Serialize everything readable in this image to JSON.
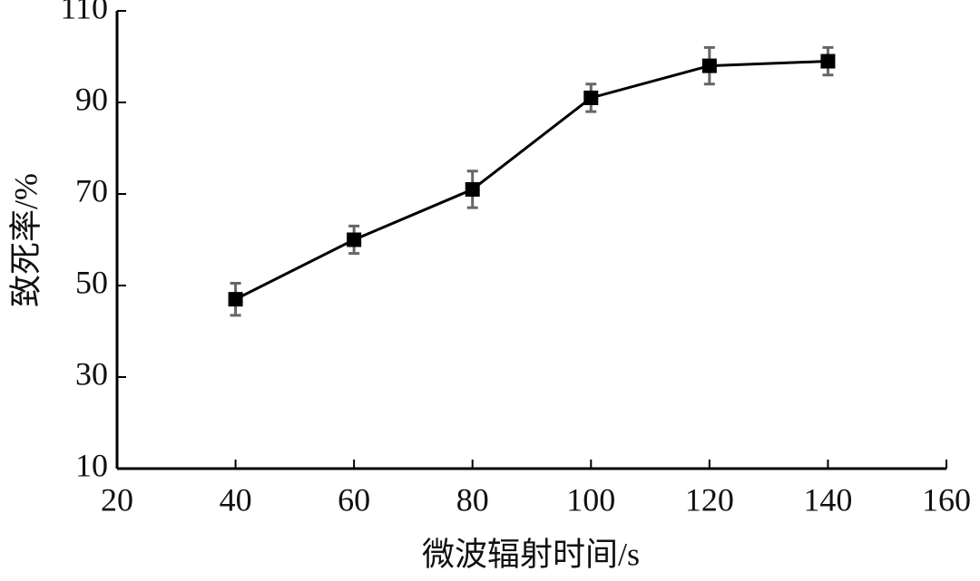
{
  "chart_data": {
    "type": "line",
    "x_label": "微波辐射时间/s",
    "y_label": "致死率/%",
    "x": [
      40,
      60,
      80,
      100,
      120,
      140
    ],
    "series": [
      {
        "color": "#000000",
        "error_color": "#666666",
        "values": [
          47,
          60,
          71,
          91,
          98,
          99
        ],
        "errors": [
          3.5,
          3,
          4,
          3,
          4,
          3
        ]
      }
    ],
    "xlim": [
      20,
      160
    ],
    "xticks": [
      20,
      40,
      60,
      80,
      100,
      120,
      140,
      160
    ],
    "ylim": [
      10,
      110
    ],
    "yticks": [
      10,
      30,
      50,
      70,
      90,
      110
    ],
    "grid": false
  }
}
